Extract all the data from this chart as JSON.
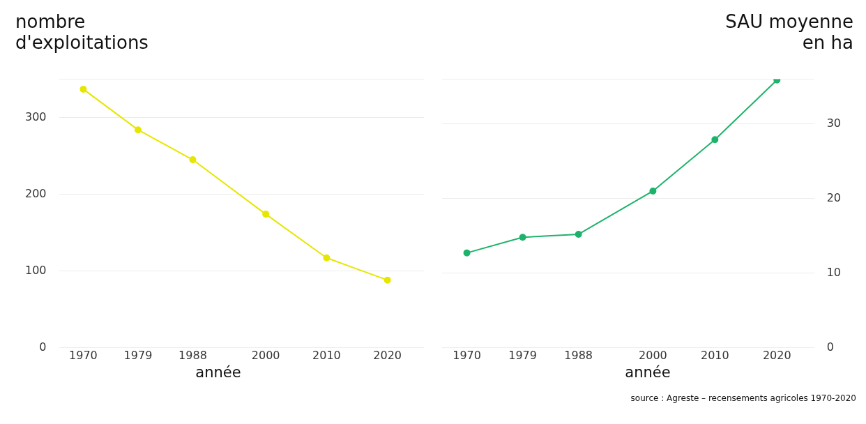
{
  "chart_data": [
    {
      "type": "line",
      "ylabel": "nombre d'exploitations",
      "xlabel": "année",
      "x": [
        1970,
        1979,
        1988,
        2000,
        2010,
        2020
      ],
      "xlim": [
        1966,
        2026
      ],
      "xticks": [
        1970,
        1979,
        1988,
        2000,
        2010,
        2020
      ],
      "ylim": [
        0,
        350
      ],
      "yticks": [
        0,
        100,
        200,
        300,
        {
          "value": 350,
          "label": null
        }
      ],
      "grid": "y",
      "marker": "circle",
      "legend": false,
      "series": [
        {
          "color": "#e6e600",
          "values": [
            337,
            284,
            245,
            174,
            117,
            88
          ]
        }
      ]
    },
    {
      "type": "line",
      "y2label": "SAU moyenne en ha",
      "xlabel": "année",
      "x": [
        1970,
        1979,
        1988,
        2000,
        2010,
        2020
      ],
      "xlim": [
        1966,
        2026
      ],
      "xticks": [
        1970,
        1979,
        1988,
        2000,
        2010,
        2020
      ],
      "y2lim": [
        0,
        36
      ],
      "y2ticks": [
        0,
        10,
        20,
        30,
        {
          "value": 36,
          "label": null
        }
      ],
      "grid": "y",
      "marker": "circle",
      "legend": false,
      "annotations": [
        "source : Agreste – recensements agricoles 1970-2020"
      ],
      "series": [
        {
          "color": "#1db36b",
          "axis": "y2",
          "values": [
            12.7,
            14.8,
            15.2,
            21,
            27.9,
            35.9
          ]
        }
      ]
    }
  ]
}
